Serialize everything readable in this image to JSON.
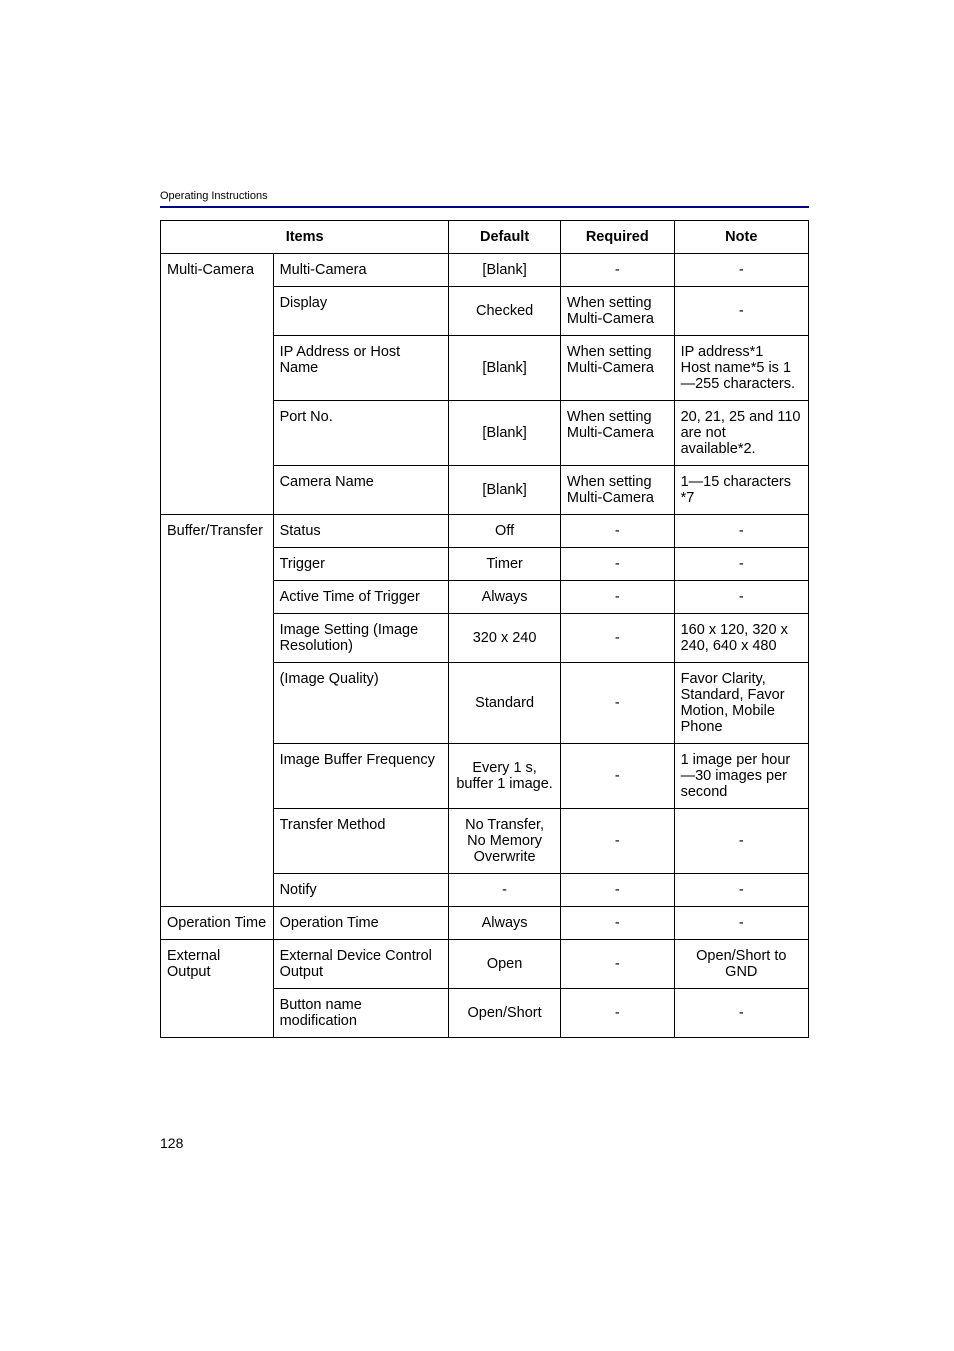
{
  "document": {
    "header": "Operating Instructions",
    "page_number": "128"
  },
  "table": {
    "headers": {
      "items": "Items",
      "default": "Default",
      "required": "Required",
      "note": "Note"
    },
    "groups": [
      {
        "category": "Multi-Camera",
        "rows": [
          {
            "item": "Multi-Camera",
            "default": "[Blank]",
            "required": "-",
            "note": "-",
            "default_align": "center",
            "required_align": "center",
            "note_align": "center"
          },
          {
            "item": "Display",
            "default": "Checked",
            "required": "When setting Multi-Camera",
            "note": "-",
            "default_align": "center",
            "note_align": "center"
          },
          {
            "item": "IP Address or Host Name",
            "default": "[Blank]",
            "required": "When setting Multi-Camera",
            "note": "IP address*1\nHost name*5 is 1—255 characters.",
            "default_align": "center"
          },
          {
            "item": "Port No.",
            "default": "[Blank]",
            "required": "When setting Multi-Camera",
            "note": "20, 21, 25 and 110 are not available*2.",
            "default_align": "center"
          },
          {
            "item": "Camera Name",
            "default": "[Blank]",
            "required": "When setting Multi-Camera",
            "note": "1—15 characters *7",
            "default_align": "center"
          }
        ]
      },
      {
        "category": "Buffer/Transfer",
        "rows": [
          {
            "item": "Status",
            "default": "Off",
            "required": "-",
            "note": "-",
            "default_align": "center",
            "required_align": "center",
            "note_align": "center"
          },
          {
            "item": "Trigger",
            "default": "Timer",
            "required": "-",
            "note": "-",
            "default_align": "center",
            "required_align": "center",
            "note_align": "center"
          },
          {
            "item": "Active Time of Trigger",
            "default": "Always",
            "required": "-",
            "note": "-",
            "default_align": "center",
            "required_align": "center",
            "note_align": "center"
          },
          {
            "item": "Image Setting (Image Resolution)",
            "default": "320 x 240",
            "required": "-",
            "note": "160 x 120, 320 x 240, 640 x 480",
            "default_align": "center",
            "required_align": "center"
          },
          {
            "item": "(Image Quality)",
            "default": "Standard",
            "required": "-",
            "note": "Favor Clarity, Standard, Favor Motion, Mobile Phone",
            "default_align": "center",
            "required_align": "center"
          },
          {
            "item": "Image Buffer Frequency",
            "default": "Every 1 s, buffer 1 image.",
            "required": "-",
            "note": "1 image per hour—30 images per second",
            "default_align": "center",
            "required_align": "center"
          },
          {
            "item": "Transfer Method",
            "default": "No Transfer, No Memory Overwrite",
            "required": "-",
            "note": "-",
            "default_align": "center",
            "required_align": "center",
            "note_align": "center"
          },
          {
            "item": "Notify",
            "default": "-",
            "required": "-",
            "note": "-",
            "default_align": "center",
            "required_align": "center",
            "note_align": "center"
          }
        ]
      },
      {
        "category": "Operation Time",
        "rows": [
          {
            "item": "Operation Time",
            "default": "Always",
            "required": "-",
            "note": "-",
            "default_align": "center",
            "required_align": "center",
            "note_align": "center"
          }
        ]
      },
      {
        "category": "External Output",
        "rows": [
          {
            "item": "External Device Control Output",
            "default": "Open",
            "required": "-",
            "note": "Open/Short to GND",
            "default_align": "center",
            "required_align": "center",
            "note_align": "center"
          },
          {
            "item": "Button name modification",
            "default": "Open/Short",
            "required": "-",
            "note": "-",
            "default_align": "center",
            "required_align": "center",
            "note_align": "center"
          }
        ]
      }
    ]
  }
}
